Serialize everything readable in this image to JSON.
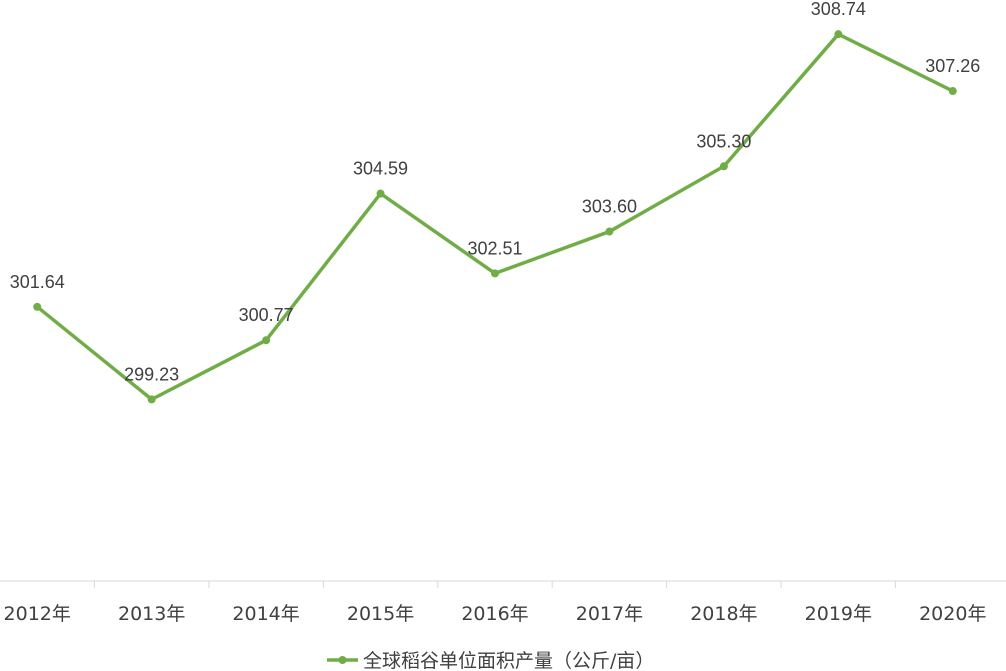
{
  "chart_data": {
    "type": "line",
    "categories": [
      "2012年",
      "2013年",
      "2014年",
      "2015年",
      "2016年",
      "2017年",
      "2018年",
      "2019年",
      "2020年"
    ],
    "series": [
      {
        "name": "全球稻谷单位面积产量（公斤/亩）",
        "values": [
          301.64,
          299.23,
          300.77,
          304.59,
          302.51,
          303.6,
          305.3,
          308.74,
          307.26
        ],
        "labels": [
          "301.64",
          "299.23",
          "300.77",
          "304.59",
          "302.51",
          "303.60",
          "305.30",
          "308.74",
          "307.26"
        ],
        "color": "#70AD47"
      }
    ],
    "ylim": [
      294.5,
      309.5
    ],
    "grid": false,
    "legend": "bottom",
    "axis_color": "#D9D9D9",
    "text_color": "#404040"
  }
}
